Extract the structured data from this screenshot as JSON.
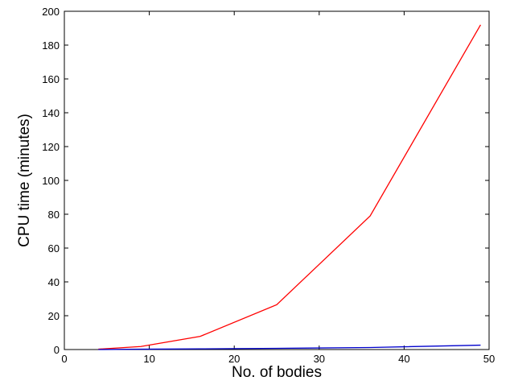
{
  "chart_data": {
    "type": "line",
    "x_label": "No. of bodies",
    "y_label": "CPU time (minutes)",
    "x": [
      4,
      9,
      16,
      25,
      36,
      49
    ],
    "series": [
      {
        "color": "#ff0000",
        "values": [
          0.2,
          1.8,
          7.8,
          26.5,
          79,
          192
        ]
      },
      {
        "color": "#0000cc",
        "values": [
          0,
          0.2,
          0.4,
          0.7,
          1.2,
          2.6
        ]
      }
    ],
    "xlim": [
      0,
      50
    ],
    "xticks": [
      0,
      10,
      20,
      30,
      40,
      50
    ],
    "ylim": [
      0,
      200
    ],
    "yticks": [
      0,
      20,
      40,
      60,
      80,
      100,
      120,
      140,
      160,
      180,
      200
    ],
    "grid": false
  }
}
